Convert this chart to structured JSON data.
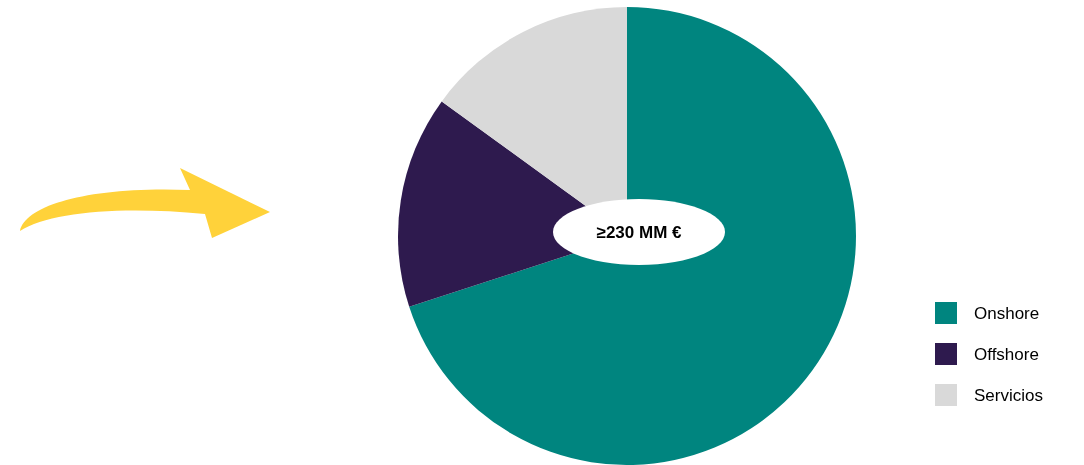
{
  "chart_data": {
    "type": "pie",
    "categories": [
      "Onshore",
      "Offshore",
      "Servicios"
    ],
    "values": [
      70,
      15,
      15
    ],
    "colors": [
      "#00857f",
      "#2e1a4e",
      "#d9d9d9"
    ],
    "legend": "right",
    "annotations": [
      "≥230 MM €"
    ]
  }
}
